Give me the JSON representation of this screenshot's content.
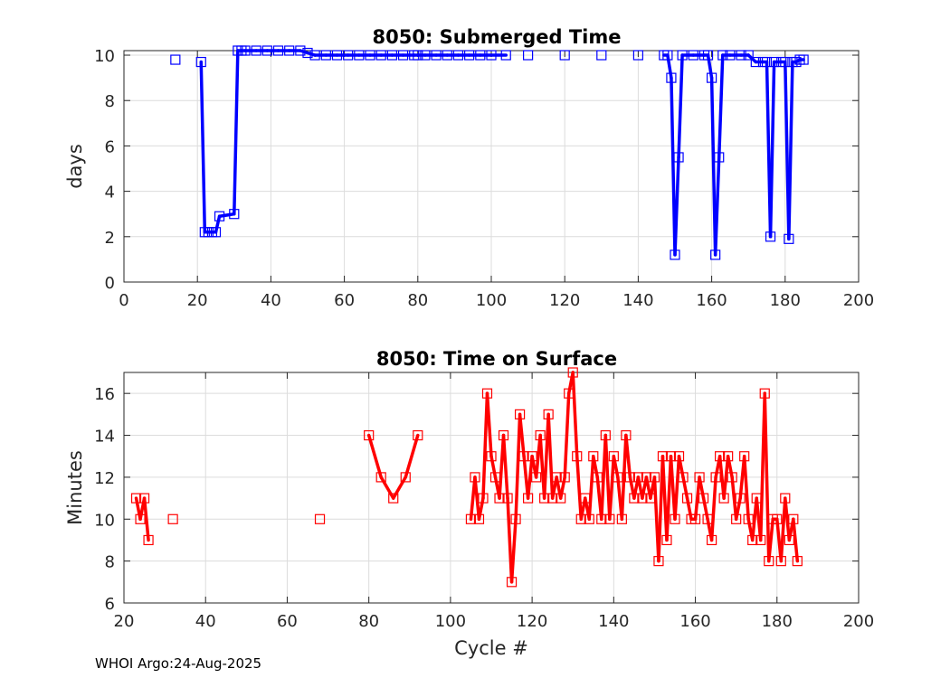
{
  "footer": {
    "credit": "WHOI Argo:24-Aug-2025"
  },
  "chart_data": [
    {
      "type": "line",
      "title": "8050: Submerged Time",
      "xlabel": "",
      "ylabel": "days",
      "xlim": [
        0,
        200
      ],
      "ylim": [
        0,
        10.2
      ],
      "xticks": [
        0,
        20,
        40,
        60,
        80,
        100,
        120,
        140,
        160,
        180,
        200
      ],
      "yticks": [
        0,
        2,
        4,
        6,
        8,
        10
      ],
      "grid": true,
      "color": "#0000ff",
      "series": [
        {
          "name": "submerged",
          "points": [
            [
              14,
              9.8
            ],
            [
              21,
              9.7
            ],
            [
              22,
              2.2
            ],
            [
              23,
              2.2
            ],
            [
              24,
              2.2
            ],
            [
              25,
              2.2
            ],
            [
              26,
              2.9
            ],
            [
              30,
              3.0
            ],
            [
              31,
              10.2
            ],
            [
              32,
              10.2
            ],
            [
              33,
              10.2
            ],
            [
              36,
              10.2
            ],
            [
              39,
              10.2
            ],
            [
              42,
              10.2
            ],
            [
              45,
              10.2
            ],
            [
              48,
              10.2
            ],
            [
              50,
              10.1
            ],
            [
              52,
              10.0
            ],
            [
              55,
              10.0
            ],
            [
              58,
              10.0
            ],
            [
              61,
              10.0
            ],
            [
              64,
              10.0
            ],
            [
              67,
              10.0
            ],
            [
              70,
              10.0
            ],
            [
              73,
              10.0
            ],
            [
              76,
              10.0
            ],
            [
              79,
              10.0
            ],
            [
              80,
              10.0
            ],
            [
              82,
              10.0
            ],
            [
              85,
              10.0
            ],
            [
              88,
              10.0
            ],
            [
              91,
              10.0
            ],
            [
              94,
              10.0
            ],
            [
              97,
              10.0
            ],
            [
              100,
              10.0
            ],
            [
              104,
              10.0
            ],
            [
              110,
              10.0
            ],
            [
              120,
              10.0
            ],
            [
              130,
              10.0
            ],
            [
              140,
              10.0
            ],
            [
              147,
              10.0
            ],
            [
              148,
              10.0
            ],
            [
              149,
              9.0
            ],
            [
              150,
              1.2
            ],
            [
              151,
              5.5
            ],
            [
              152,
              10.0
            ],
            [
              155,
              10.0
            ],
            [
              158,
              10.0
            ],
            [
              159,
              10.0
            ],
            [
              160,
              9.0
            ],
            [
              161,
              1.2
            ],
            [
              162,
              5.5
            ],
            [
              163,
              10.0
            ],
            [
              165,
              10.0
            ],
            [
              168,
              10.0
            ],
            [
              170,
              10.0
            ],
            [
              172,
              9.7
            ],
            [
              174,
              9.7
            ],
            [
              175,
              9.7
            ],
            [
              176,
              2.0
            ],
            [
              177,
              9.7
            ],
            [
              179,
              9.7
            ],
            [
              180,
              9.7
            ],
            [
              181,
              1.9
            ],
            [
              182,
              9.7
            ],
            [
              183,
              9.7
            ],
            [
              184,
              9.8
            ],
            [
              185,
              9.8
            ]
          ]
        }
      ]
    },
    {
      "type": "line",
      "title": "8050: Time on Surface",
      "xlabel": "Cycle #",
      "ylabel": "Minutes",
      "xlim": [
        20,
        200
      ],
      "ylim": [
        6,
        17
      ],
      "xticks": [
        20,
        40,
        60,
        80,
        100,
        120,
        140,
        160,
        180,
        200
      ],
      "yticks": [
        6,
        8,
        10,
        12,
        14,
        16
      ],
      "grid": true,
      "color": "#ff0000",
      "series": [
        {
          "name": "surface",
          "points": [
            [
              23,
              11
            ],
            [
              24,
              10
            ],
            [
              25,
              11
            ],
            [
              26,
              9
            ],
            [
              32,
              10
            ],
            [
              68,
              10
            ],
            [
              80,
              14
            ],
            [
              83,
              12
            ],
            [
              86,
              11
            ],
            [
              89,
              12
            ],
            [
              92,
              14
            ],
            [
              105,
              10
            ],
            [
              106,
              12
            ],
            [
              107,
              10
            ],
            [
              108,
              11
            ],
            [
              109,
              16
            ],
            [
              110,
              13
            ],
            [
              111,
              12
            ],
            [
              112,
              11
            ],
            [
              113,
              14
            ],
            [
              114,
              11
            ],
            [
              115,
              7
            ],
            [
              116,
              10
            ],
            [
              117,
              15
            ],
            [
              118,
              13
            ],
            [
              119,
              11
            ],
            [
              120,
              13
            ],
            [
              121,
              12
            ],
            [
              122,
              14
            ],
            [
              123,
              11
            ],
            [
              124,
              15
            ],
            [
              125,
              11
            ],
            [
              126,
              12
            ],
            [
              127,
              11
            ],
            [
              128,
              12
            ],
            [
              129,
              16
            ],
            [
              130,
              17
            ],
            [
              131,
              13
            ],
            [
              132,
              10
            ],
            [
              133,
              11
            ],
            [
              134,
              10
            ],
            [
              135,
              13
            ],
            [
              136,
              12
            ],
            [
              137,
              10
            ],
            [
              138,
              14
            ],
            [
              139,
              10
            ],
            [
              140,
              13
            ],
            [
              141,
              12
            ],
            [
              142,
              10
            ],
            [
              143,
              14
            ],
            [
              144,
              12
            ],
            [
              145,
              11
            ],
            [
              146,
              12
            ],
            [
              147,
              11
            ],
            [
              148,
              12
            ],
            [
              149,
              11
            ],
            [
              150,
              12
            ],
            [
              151,
              8
            ],
            [
              152,
              13
            ],
            [
              153,
              9
            ],
            [
              154,
              13
            ],
            [
              155,
              10
            ],
            [
              156,
              13
            ],
            [
              157,
              12
            ],
            [
              158,
              11
            ],
            [
              159,
              10
            ],
            [
              160,
              10
            ],
            [
              161,
              12
            ],
            [
              162,
              11
            ],
            [
              163,
              10
            ],
            [
              164,
              9
            ],
            [
              165,
              12
            ],
            [
              166,
              13
            ],
            [
              167,
              11
            ],
            [
              168,
              13
            ],
            [
              169,
              12
            ],
            [
              170,
              10
            ],
            [
              171,
              11
            ],
            [
              172,
              13
            ],
            [
              173,
              10
            ],
            [
              174,
              9
            ],
            [
              175,
              11
            ],
            [
              176,
              9
            ],
            [
              177,
              16
            ],
            [
              178,
              8
            ],
            [
              179,
              10
            ],
            [
              180,
              10
            ],
            [
              181,
              8
            ],
            [
              182,
              11
            ],
            [
              183,
              9
            ],
            [
              184,
              10
            ],
            [
              185,
              8
            ]
          ]
        }
      ]
    }
  ]
}
